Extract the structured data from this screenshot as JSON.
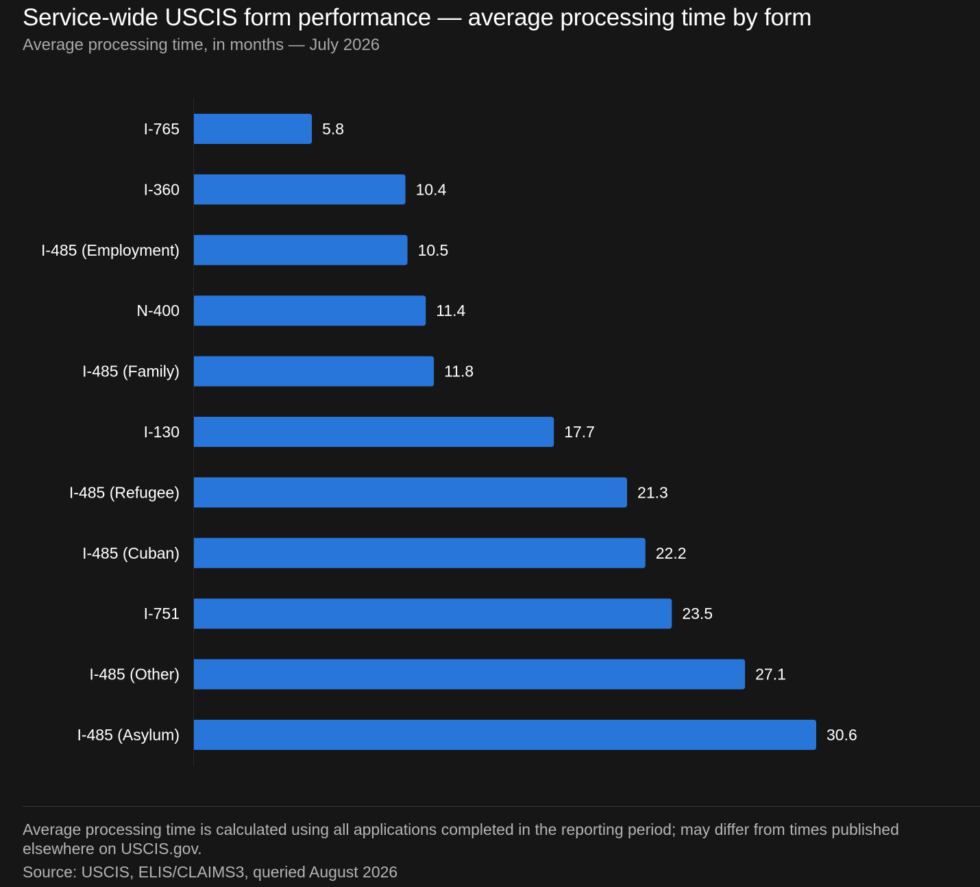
{
  "header": {
    "title": "Service-wide USCIS form performance — average processing time by form",
    "subtitle": "Average processing time, in months — July 2026"
  },
  "footer": {
    "note": "Average processing time is calculated using all applications completed in the reporting period; may differ from times published elsewhere on USCIS.gov.",
    "source": "Source: USCIS, ELIS/CLAIMS3, queried August 2026"
  },
  "colors": {
    "background": "#161616",
    "bar": "#2876d9",
    "text": "#ffffff",
    "muted_text": "#b4b4b4"
  },
  "chart_data": {
    "type": "bar",
    "orientation": "horizontal",
    "categories": [
      "I-765",
      "I-360",
      "I-485 (Employment)",
      "N-400",
      "I-485 (Family)",
      "I-130",
      "I-485 (Refugee)",
      "I-485 (Cuban)",
      "I-751",
      "I-485 (Other)",
      "I-485 (Asylum)"
    ],
    "values": [
      5.8,
      10.4,
      10.5,
      11.4,
      11.8,
      17.7,
      21.3,
      22.2,
      23.5,
      27.1,
      30.6
    ],
    "value_labels": [
      "5.8",
      "10.4",
      "10.5",
      "11.4",
      "11.8",
      "17.7",
      "21.3",
      "22.2",
      "23.5",
      "27.1",
      "30.6"
    ],
    "title": "Service-wide USCIS form performance — average processing time by form",
    "subtitle": "Average processing time, in months — July 2026",
    "xlabel": "",
    "ylabel": "",
    "xlim": [
      0,
      30.6
    ],
    "grid": false,
    "legend": "none",
    "data_labels": "outside-end"
  }
}
